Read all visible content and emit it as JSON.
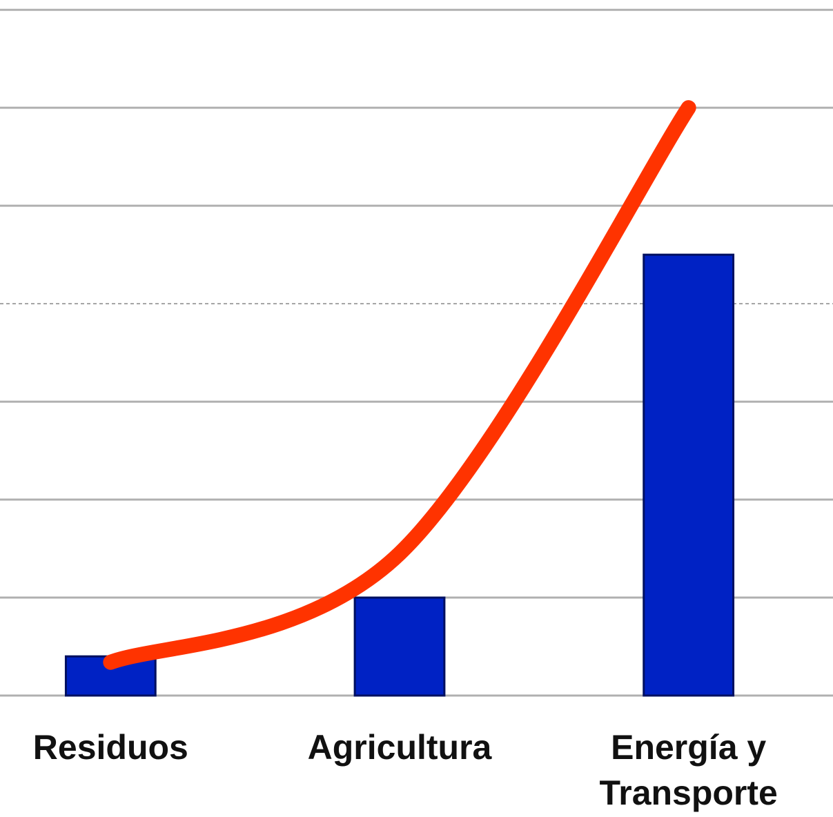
{
  "chart_data": {
    "type": "bar",
    "categories": [
      "Residuos",
      "Agricultura",
      "Energía y Transporte"
    ],
    "series": [
      {
        "type": "bar",
        "color": "#0022c4",
        "values": [
          0.4,
          1,
          4.5
        ]
      },
      {
        "type": "line",
        "color": "#ff3300",
        "values": [
          0.34,
          1.45,
          6
        ]
      }
    ],
    "ylim": [
      0,
      7.1
    ],
    "yticks": [
      0,
      1,
      2,
      3,
      4,
      5,
      6,
      7
    ],
    "grid": true,
    "dashed_ytick": 4
  }
}
